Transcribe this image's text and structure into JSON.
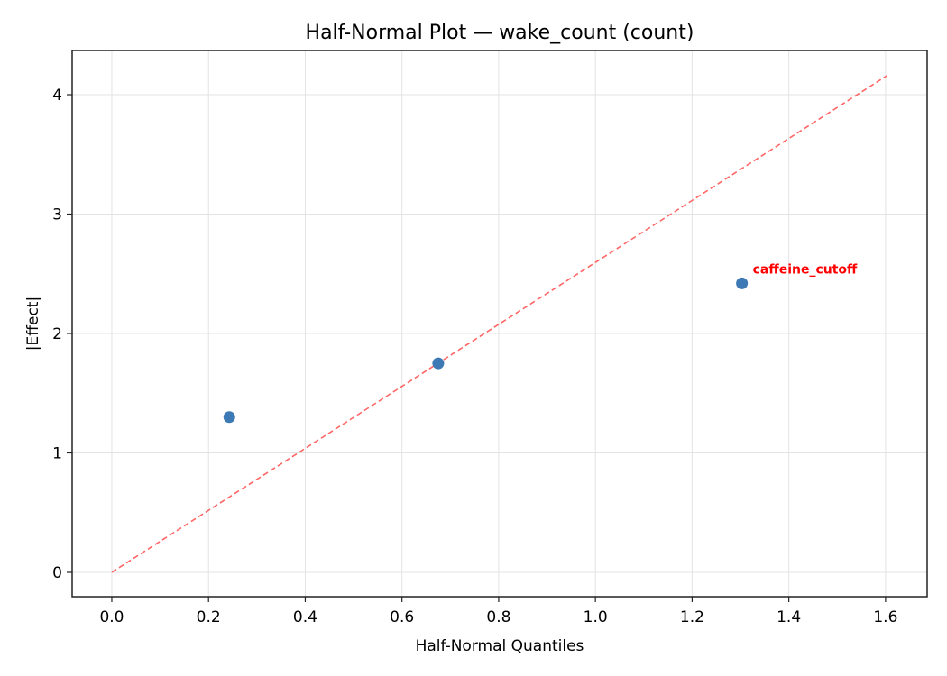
{
  "chart_data": {
    "type": "scatter",
    "title": "Half-Normal Plot — wake_count (count)",
    "xlabel": "Half-Normal Quantiles",
    "ylabel": "|Effect|",
    "xlim": [
      -0.082,
      1.686
    ],
    "ylim": [
      -0.204,
      4.37
    ],
    "xticks": [
      0.0,
      0.2,
      0.4,
      0.6,
      0.8,
      1.0,
      1.2,
      1.4,
      1.6
    ],
    "xtick_labels": [
      "0.0",
      "0.2",
      "0.4",
      "0.6",
      "0.8",
      "1.0",
      "1.2",
      "1.4",
      "1.6"
    ],
    "yticks": [
      0,
      1,
      2,
      3,
      4
    ],
    "ytick_labels": [
      "0",
      "1",
      "2",
      "3",
      "4"
    ],
    "grid": true,
    "points": [
      {
        "x": 0.243,
        "y": 1.3,
        "label": ""
      },
      {
        "x": 0.675,
        "y": 1.75,
        "label": ""
      },
      {
        "x": 1.303,
        "y": 2.42,
        "label": "caffeine_cutoff"
      }
    ],
    "reference_line": {
      "x": [
        0.0,
        1.603
      ],
      "y": [
        0.0,
        4.16
      ],
      "style": "dashed"
    },
    "colors": {
      "points": "#3d7ab5",
      "reference_line": "#ff6666",
      "annotation": "#ff0000"
    }
  }
}
